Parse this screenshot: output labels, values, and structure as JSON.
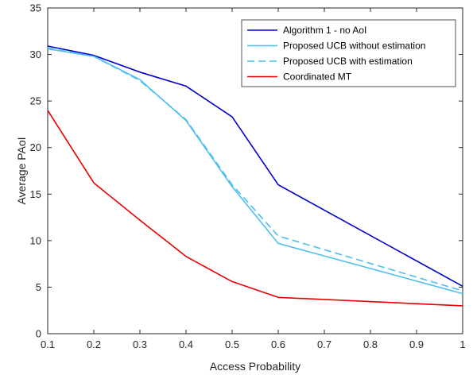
{
  "chart_data": {
    "type": "line",
    "title": "",
    "xlabel": "Access Probability",
    "ylabel": "Average PAoI",
    "xlim": [
      0.1,
      1
    ],
    "ylim": [
      0,
      35
    ],
    "xticks": [
      "0.1",
      "0.2",
      "0.3",
      "0.4",
      "0.5",
      "0.6",
      "0.7",
      "0.8",
      "0.9",
      "1"
    ],
    "yticks": [
      "0",
      "5",
      "10",
      "15",
      "20",
      "25",
      "30",
      "35"
    ],
    "grid": false,
    "legend_position": "top-right",
    "x": [
      0.1,
      0.2,
      0.3,
      0.4,
      0.5,
      0.6,
      1.0
    ],
    "series": [
      {
        "name": "Algorithm 1 - no AoI",
        "color": "#0000cd",
        "dash": "solid",
        "values": [
          30.9,
          29.9,
          28.1,
          26.6,
          23.3,
          16.0,
          5.1
        ]
      },
      {
        "name": "Proposed UCB without estimation",
        "color": "#4dbeee",
        "dash": "solid",
        "values": [
          30.6,
          29.8,
          27.3,
          22.9,
          15.8,
          9.7,
          4.3
        ]
      },
      {
        "name": "Proposed UCB with estimation",
        "color": "#4dbeee",
        "dash": "dashed",
        "values": [
          30.7,
          29.8,
          27.2,
          23.0,
          16.0,
          10.5,
          4.6
        ]
      },
      {
        "name": "Coordinated MT",
        "color": "#e80000",
        "dash": "solid",
        "values": [
          24.0,
          16.2,
          12.2,
          8.3,
          5.6,
          3.9,
          3.0
        ]
      }
    ]
  }
}
